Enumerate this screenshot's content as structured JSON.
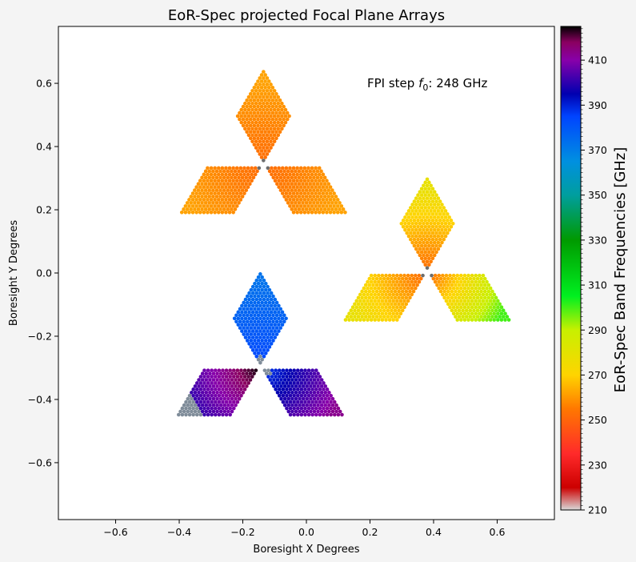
{
  "chart_data": {
    "type": "scatter",
    "title": "EoR-Spec projected Focal Plane Arrays",
    "xlabel": "Boresight X Degrees",
    "ylabel": "Boresight Y Degrees",
    "xlim": [
      -0.78,
      0.78
    ],
    "ylim": [
      -0.78,
      0.78
    ],
    "x_ticks": [
      "−0.6",
      "−0.4",
      "−0.2",
      "0.0",
      "0.2",
      "0.4",
      "0.6"
    ],
    "x_tick_values": [
      -0.6,
      -0.4,
      -0.2,
      0.0,
      0.2,
      0.4,
      0.6
    ],
    "y_ticks": [
      "0.6",
      "0.4",
      "0.2",
      "0.0",
      "−0.2",
      "−0.4",
      "−0.6"
    ],
    "y_tick_values": [
      0.6,
      0.4,
      0.2,
      0.0,
      -0.2,
      -0.4,
      -0.6
    ],
    "annotation_prefix": "FPI step ",
    "annotation_symbol": "f",
    "annotation_sub": "0",
    "annotation_value": ": 248 GHz",
    "colorbar": {
      "label": "EoR-Spec Band Frequencies [GHz]",
      "range": [
        210,
        425
      ],
      "ticks": [
        "410",
        "390",
        "370",
        "350",
        "330",
        "310",
        "290",
        "270",
        "250",
        "230",
        "210"
      ],
      "tick_values": [
        410,
        390,
        370,
        350,
        330,
        310,
        290,
        270,
        250,
        230,
        210
      ],
      "colormap": [
        "#d9d9d9",
        "#cc0000",
        "#ff2a2a",
        "#ff7800",
        "#ffd400",
        "#c8f000",
        "#00f020",
        "#009a00",
        "#009e9e",
        "#0090e0",
        "#0044ff",
        "#0000b0",
        "#8800aa",
        "#8a0060",
        "#000000"
      ],
      "colormap_values": [
        210,
        220,
        235,
        255,
        270,
        290,
        305,
        330,
        350,
        365,
        385,
        395,
        410,
        418,
        425
      ]
    },
    "arrays": [
      {
        "id": "A1",
        "center": [
          -0.135,
          0.34
        ],
        "rotation_deg": 0,
        "freq_min": 252,
        "freq_max": 270,
        "gradient_to_center": false,
        "gray_overlay": "A1"
      },
      {
        "id": "A2",
        "center": [
          0.38,
          0.0
        ],
        "rotation_deg": 120,
        "freq_min": 252,
        "freq_max": 300,
        "gradient_to_center": false,
        "gray_overlay": "A2"
      },
      {
        "id": "A3",
        "center": [
          -0.145,
          -0.3
        ],
        "rotation_deg": 240,
        "freq_min": 375,
        "freq_max": 425,
        "gradient_to_center": true,
        "gray_overlay": "A3"
      }
    ],
    "unmeasured_color": "#7f8c99"
  }
}
